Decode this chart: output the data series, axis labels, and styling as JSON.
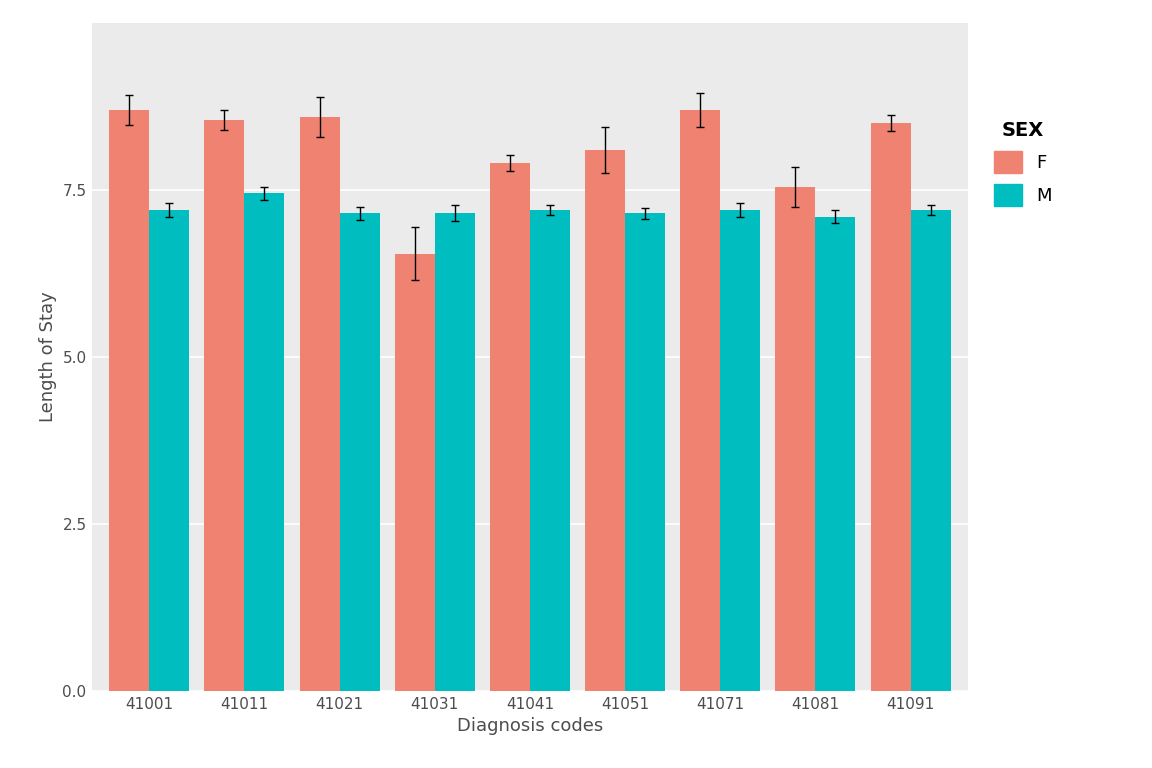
{
  "categories": [
    "41001",
    "41011",
    "41021",
    "41031",
    "41041",
    "41051",
    "41071",
    "41081",
    "41091"
  ],
  "F_values": [
    8.7,
    8.55,
    8.6,
    6.55,
    7.9,
    8.1,
    8.7,
    7.55,
    8.5
  ],
  "M_values": [
    7.2,
    7.45,
    7.15,
    7.15,
    7.2,
    7.15,
    7.2,
    7.1,
    7.2
  ],
  "F_errors": [
    0.22,
    0.15,
    0.3,
    0.4,
    0.12,
    0.35,
    0.25,
    0.3,
    0.12
  ],
  "M_errors": [
    0.1,
    0.1,
    0.1,
    0.12,
    0.08,
    0.08,
    0.1,
    0.1,
    0.08
  ],
  "F_color": "#F08272",
  "M_color": "#00BEBF",
  "ylabel": "Length of Stay",
  "xlabel": "Diagnosis codes",
  "legend_title": "SEX",
  "legend_labels": [
    "F",
    "M"
  ],
  "ylim": [
    0,
    10
  ],
  "yticks": [
    0.0,
    2.5,
    5.0,
    7.5
  ],
  "plot_bg_color": "#EBEBEB",
  "fig_bg_color": "#FFFFFF",
  "bar_width": 0.42,
  "axis_fontsize": 13,
  "tick_fontsize": 11,
  "legend_fontsize": 13
}
